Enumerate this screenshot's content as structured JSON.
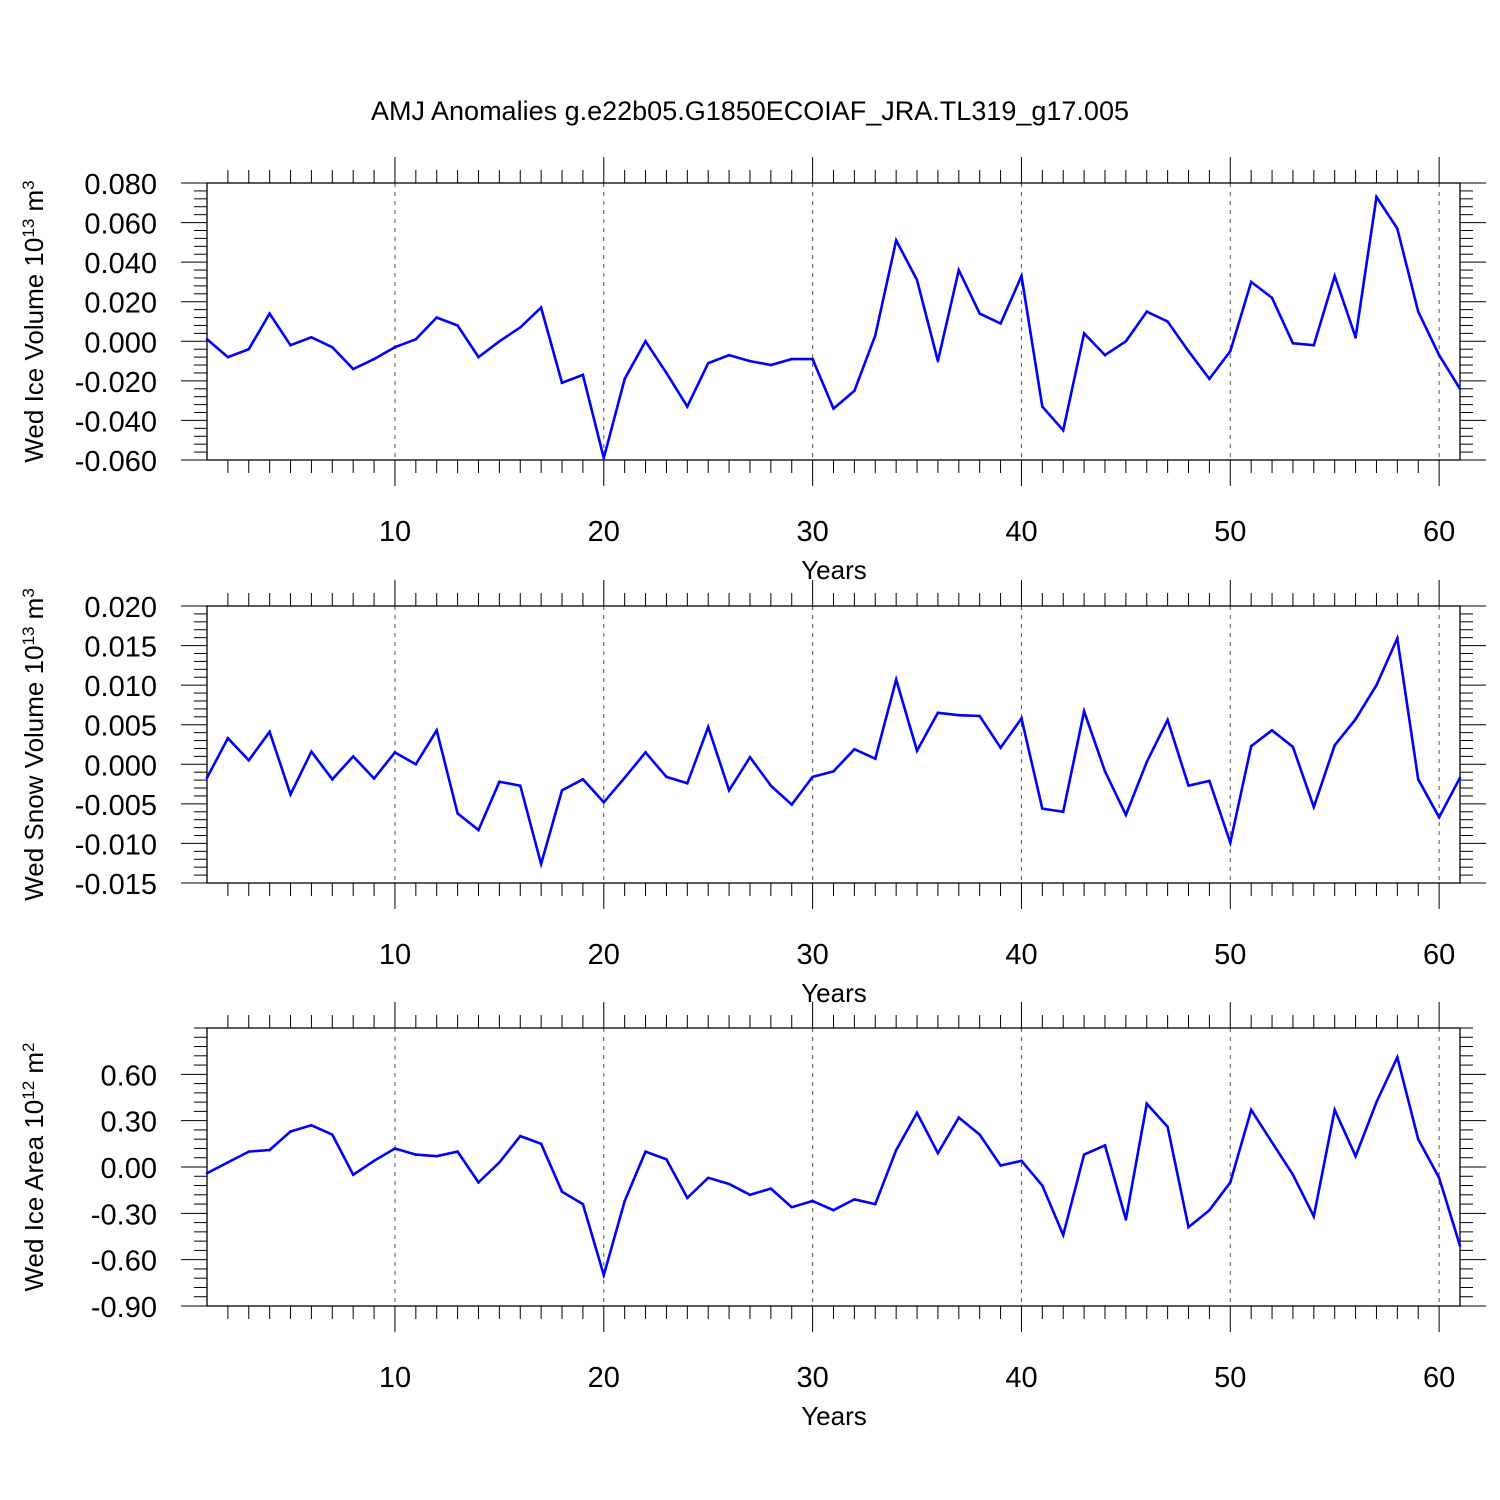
{
  "title": "AMJ Anomalies g.e22b05.G1850ECOIAF_JRA.TL319_g17.005",
  "colors": {
    "line": "#0000ff",
    "axis": "#000000",
    "grid": "#555555"
  },
  "chart_data": [
    {
      "type": "line",
      "ylabel": {
        "main": "Wed Ice Volume 10",
        "exp": "13",
        "unit": " m",
        "unit_exp": "3"
      },
      "xlabel": "Years",
      "xlim": [
        1,
        61
      ],
      "ylim": [
        -0.06,
        0.08
      ],
      "yticks": [
        -0.06,
        -0.04,
        -0.02,
        0.0,
        0.02,
        0.04,
        0.06,
        0.08
      ],
      "ytick_labels": [
        "-0.060",
        "-0.040",
        "-0.020",
        "0.000",
        "0.020",
        "0.040",
        "0.060",
        "0.080"
      ],
      "xticks": [
        10,
        20,
        30,
        40,
        50,
        60
      ],
      "xtick_labels": [
        "10",
        "20",
        "30",
        "40",
        "50",
        "60"
      ],
      "grid_x": [
        10,
        20,
        30,
        40,
        50,
        60
      ],
      "values": [
        0.001,
        -0.008,
        -0.004,
        0.014,
        -0.002,
        0.002,
        -0.003,
        -0.014,
        -0.009,
        -0.003,
        0.001,
        0.012,
        0.008,
        -0.008,
        0.0,
        0.007,
        0.017,
        -0.021,
        -0.017,
        -0.059,
        -0.019,
        0.0,
        -0.016,
        -0.033,
        -0.011,
        -0.007,
        -0.01,
        -0.012,
        -0.009,
        -0.009,
        -0.034,
        -0.025,
        0.003,
        0.051,
        0.031,
        -0.01,
        0.036,
        0.014,
        0.009,
        0.033,
        -0.033,
        -0.045,
        0.004,
        -0.007,
        0.0,
        0.015,
        0.01,
        -0.005,
        -0.019,
        -0.005,
        0.03,
        0.022,
        -0.001,
        -0.002,
        0.033,
        0.002,
        0.073,
        0.057,
        0.015,
        -0.007,
        -0.024
      ]
    },
    {
      "type": "line",
      "ylabel": {
        "main": "Wed Snow Volume 10",
        "exp": "13",
        "unit": " m",
        "unit_exp": "3"
      },
      "xlabel": "Years",
      "xlim": [
        1,
        61
      ],
      "ylim": [
        -0.015,
        0.02
      ],
      "yticks": [
        -0.015,
        -0.01,
        -0.005,
        0.0,
        0.005,
        0.01,
        0.015,
        0.02
      ],
      "ytick_labels": [
        "-0.015",
        "-0.010",
        "-0.005",
        "0.000",
        "0.005",
        "0.010",
        "0.015",
        "0.020"
      ],
      "xticks": [
        10,
        20,
        30,
        40,
        50,
        60
      ],
      "xtick_labels": [
        "10",
        "20",
        "30",
        "40",
        "50",
        "60"
      ],
      "grid_x": [
        10,
        20,
        30,
        40,
        50,
        60
      ],
      "values": [
        -0.0017,
        0.0033,
        0.0005,
        0.0041,
        -0.0038,
        0.0016,
        -0.0019,
        0.001,
        -0.0018,
        0.0015,
        0.0,
        0.0043,
        -0.0062,
        -0.0083,
        -0.0022,
        -0.0027,
        -0.0126,
        -0.0033,
        -0.0019,
        -0.0048,
        -0.0017,
        0.0015,
        -0.0016,
        -0.0024,
        0.0047,
        -0.0033,
        0.0009,
        -0.0027,
        -0.0051,
        -0.0016,
        -0.0009,
        0.0019,
        0.0007,
        0.0107,
        0.0017,
        0.0065,
        0.0062,
        0.0061,
        0.0021,
        0.0058,
        -0.0056,
        -0.006,
        0.0067,
        -0.0009,
        -0.0064,
        0.0003,
        0.0056,
        -0.0027,
        -0.0021,
        -0.0099,
        0.0023,
        0.0043,
        0.0022,
        -0.0054,
        0.0024,
        0.0057,
        0.01,
        0.0159,
        -0.0019,
        -0.0067,
        -0.0017
      ]
    },
    {
      "type": "line",
      "ylabel": {
        "main": "Wed Ice Area 10",
        "exp": "12",
        "unit": " m",
        "unit_exp": "2"
      },
      "xlabel": "Years",
      "xlim": [
        1,
        61
      ],
      "ylim": [
        -0.9,
        0.9
      ],
      "yticks": [
        -0.9,
        -0.6,
        -0.3,
        0.0,
        0.3,
        0.6
      ],
      "ytick_labels": [
        "-0.90",
        "-0.60",
        "-0.30",
        "0.00",
        "0.30",
        "0.60"
      ],
      "xticks": [
        10,
        20,
        30,
        40,
        50,
        60
      ],
      "xtick_labels": [
        "10",
        "20",
        "30",
        "40",
        "50",
        "60"
      ],
      "grid_x": [
        10,
        20,
        30,
        40,
        50,
        60
      ],
      "values": [
        -0.04,
        0.03,
        0.1,
        0.11,
        0.23,
        0.27,
        0.21,
        -0.05,
        0.04,
        0.12,
        0.08,
        0.07,
        0.1,
        -0.1,
        0.03,
        0.2,
        0.15,
        -0.16,
        -0.24,
        -0.7,
        -0.22,
        0.1,
        0.05,
        -0.2,
        -0.07,
        -0.11,
        -0.18,
        -0.14,
        -0.26,
        -0.22,
        -0.28,
        -0.21,
        -0.24,
        0.11,
        0.35,
        0.09,
        0.32,
        0.21,
        0.01,
        0.04,
        -0.12,
        -0.44,
        0.08,
        0.14,
        -0.34,
        0.41,
        0.26,
        -0.39,
        -0.28,
        -0.1,
        0.37,
        0.16,
        -0.05,
        -0.32,
        0.37,
        0.07,
        0.42,
        0.71,
        0.18,
        -0.07,
        -0.51
      ]
    }
  ]
}
